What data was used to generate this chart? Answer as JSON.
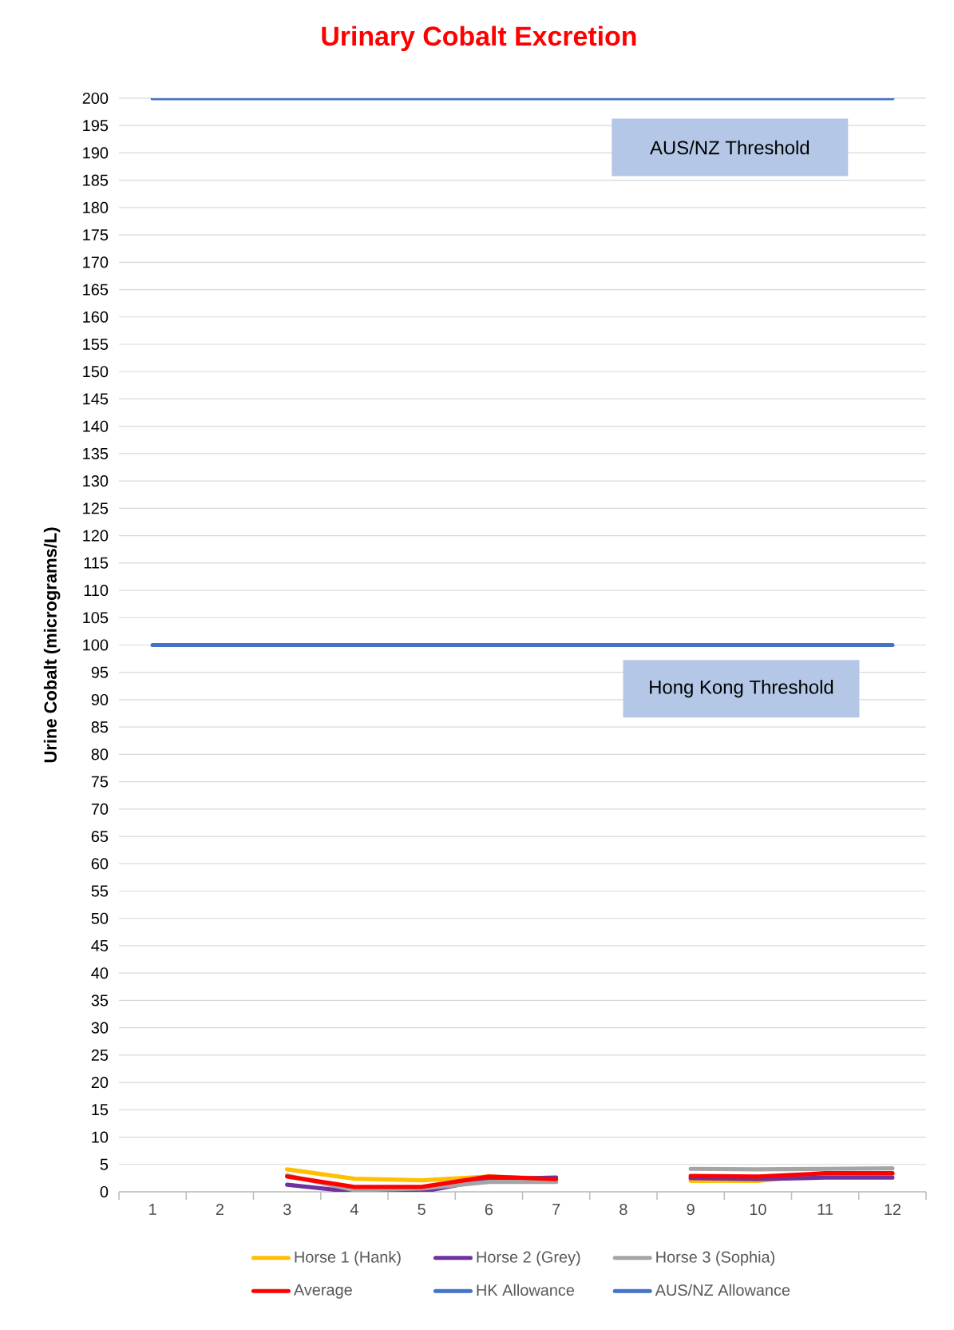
{
  "chart_data": {
    "type": "line",
    "title": "**Urinary Cobalt Excretion**",
    "ylabel": "**Urine Cobalt (micrograms/L)**",
    "categories": [
      "1",
      "2",
      "3",
      "4",
      "5",
      "6",
      "7",
      "8",
      "9",
      "10",
      "11",
      "12"
    ],
    "series": [
      {
        "name": "Horse 1 (Hank)",
        "color": "#ffc000",
        "values": [
          null,
          null,
          4.1,
          2.4,
          2.1,
          2.8,
          2.4,
          null,
          2.0,
          2.0,
          3.3,
          3.3
        ]
      },
      {
        "name": "Horse 2 (Grey)",
        "color": "#7030a0",
        "values": [
          null,
          null,
          1.3,
          0,
          0,
          2.3,
          2.6,
          null,
          2.5,
          2.3,
          2.6,
          2.6
        ]
      },
      {
        "name": "Horse 3 (Sophia)",
        "color": "#a5a5a5",
        "values": [
          null,
          null,
          3.0,
          0.3,
          0.6,
          1.8,
          1.8,
          null,
          4.2,
          4.1,
          4.2,
          4.3
        ]
      },
      {
        "name": "Average",
        "color": "#ff0000",
        "values": [
          null,
          null,
          2.8,
          0.9,
          0.9,
          2.8,
          2.3,
          null,
          2.9,
          2.8,
          3.4,
          3.4
        ]
      },
      {
        "name": "HK Allowance",
        "color": "#4472c4",
        "values": [
          100,
          100,
          100,
          100,
          100,
          100,
          100,
          100,
          100,
          100,
          100,
          100
        ]
      },
      {
        "name": "AUS/NZ Allowance",
        "color": "#4472c4",
        "values": [
          200,
          200,
          200,
          200,
          200,
          200,
          200,
          200,
          200,
          200,
          200,
          200
        ]
      }
    ],
    "annotations": [
      "AUS/NZ Threshold",
      "Hong Kong Threshold"
    ],
    "ylim": [
      0,
      200
    ],
    "yticks": [
      0,
      5,
      10,
      15,
      20,
      25,
      30,
      35,
      40,
      45,
      50,
      55,
      60,
      65,
      70,
      75,
      80,
      85,
      90,
      95,
      100,
      105,
      110,
      115,
      120,
      125,
      130,
      135,
      140,
      145,
      150,
      155,
      160,
      165,
      170,
      175,
      180,
      185,
      190,
      195,
      200
    ],
    "grid": "y",
    "legend": "bottom",
    "marker": "none",
    "line_style": "solid"
  }
}
